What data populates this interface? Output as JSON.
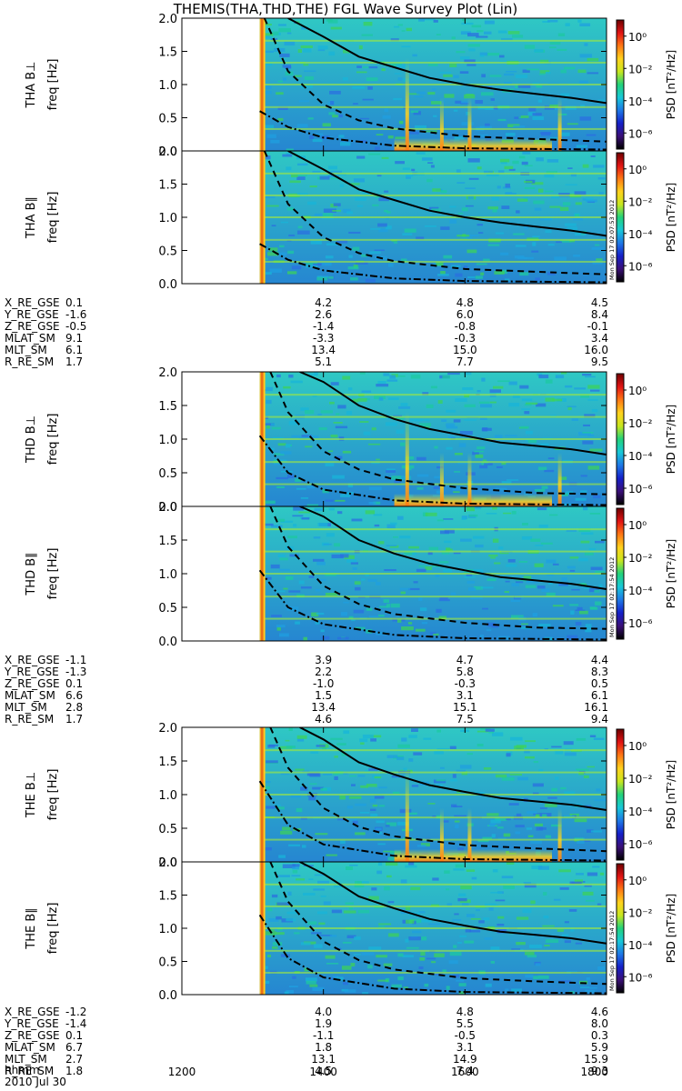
{
  "chart_data": {
    "type": "heatmap",
    "title": "THEMIS(THA,THD,THE) FGL Wave Survey Plot (Lin)",
    "date_label": "2010 Jul 30",
    "time_label": "hhmm",
    "time_ticks": [
      "1200",
      "1400",
      "1600",
      "1800"
    ],
    "time_range_hhmm": [
      "1200",
      "1800"
    ],
    "freq_label": "freq [Hz]",
    "freq_range": [
      0.0,
      2.0
    ],
    "freq_ticks": [
      "0.0",
      "0.5",
      "1.0",
      "1.5",
      "2.0"
    ],
    "colorbar": {
      "label": "PSD [nT²/Hz]",
      "ticks": [
        "10⁰",
        "10⁻²",
        "10⁻⁴",
        "10⁻⁶"
      ],
      "range_log10": [
        -7,
        1
      ],
      "colors": [
        "#000000",
        "#3b1078",
        "#1520c8",
        "#1e78e6",
        "#18c8d8",
        "#22d27a",
        "#c8e61e",
        "#ffd21e",
        "#ff7814",
        "#e11414",
        "#6e0000"
      ]
    },
    "stamp_texts": [
      "Mon Sep 17 02:07:53 2012",
      "Mon Sep 17 02:17:54 2012"
    ],
    "panels": [
      {
        "label": "THA B⊥",
        "probe": "THA",
        "component": "perp",
        "stamp": "",
        "data_start_hhmm": "1306",
        "solid_curve": {
          "x": [
            "1330",
            "1400",
            "1430",
            "1500",
            "1530",
            "1600",
            "1630",
            "1700",
            "1730",
            "1800"
          ],
          "y": [
            2.1,
            1.72,
            1.42,
            1.26,
            1.1,
            1.0,
            0.92,
            0.86,
            0.8,
            0.72
          ]
        },
        "dashed_curve": {
          "x": [
            "1310",
            "1330",
            "1400",
            "1430",
            "1500",
            "1600",
            "1700",
            "1800"
          ],
          "y": [
            2.0,
            1.2,
            0.7,
            0.46,
            0.34,
            0.22,
            0.18,
            0.14
          ]
        },
        "dashdot_curve": {
          "x": [
            "1306",
            "1330",
            "1400",
            "1500",
            "1600",
            "1800"
          ],
          "y": [
            0.6,
            0.36,
            0.2,
            0.08,
            0.04,
            0.02
          ]
        }
      },
      {
        "label": "THA B∥",
        "probe": "THA",
        "component": "par",
        "stamp": "Mon Sep 17 02:07:53 2012",
        "data_start_hhmm": "1306",
        "solid_curve": {
          "x": [
            "1330",
            "1400",
            "1430",
            "1500",
            "1530",
            "1600",
            "1630",
            "1700",
            "1730",
            "1800"
          ],
          "y": [
            2.1,
            1.72,
            1.42,
            1.26,
            1.1,
            1.0,
            0.92,
            0.86,
            0.8,
            0.72
          ]
        },
        "dashed_curve": {
          "x": [
            "1310",
            "1330",
            "1400",
            "1430",
            "1500",
            "1600",
            "1700",
            "1800"
          ],
          "y": [
            2.0,
            1.2,
            0.7,
            0.46,
            0.34,
            0.22,
            0.18,
            0.14
          ]
        },
        "dashdot_curve": {
          "x": [
            "1306",
            "1330",
            "1400",
            "1500",
            "1600",
            "1800"
          ],
          "y": [
            0.6,
            0.36,
            0.2,
            0.08,
            0.04,
            0.02
          ]
        }
      },
      {
        "label": "THD B⊥",
        "probe": "THD",
        "component": "perp",
        "stamp": "",
        "data_start_hhmm": "1306",
        "solid_curve": {
          "x": [
            "1340",
            "1400",
            "1430",
            "1500",
            "1530",
            "1600",
            "1630",
            "1700",
            "1730",
            "1800"
          ],
          "y": [
            2.1,
            1.85,
            1.5,
            1.3,
            1.15,
            1.05,
            0.95,
            0.9,
            0.85,
            0.77
          ]
        },
        "dashed_curve": {
          "x": [
            "1315",
            "1330",
            "1400",
            "1430",
            "1500",
            "1600",
            "1700",
            "1800"
          ],
          "y": [
            2.0,
            1.4,
            0.82,
            0.55,
            0.4,
            0.27,
            0.2,
            0.18
          ]
        },
        "dashdot_curve": {
          "x": [
            "1306",
            "1330",
            "1400",
            "1500",
            "1600",
            "1800"
          ],
          "y": [
            1.05,
            0.5,
            0.25,
            0.09,
            0.04,
            0.02
          ]
        }
      },
      {
        "label": "THD B∥",
        "probe": "THD",
        "component": "par",
        "stamp": "Mon Sep 17 02:17:54 2012",
        "data_start_hhmm": "1306",
        "solid_curve": {
          "x": [
            "1340",
            "1400",
            "1430",
            "1500",
            "1530",
            "1600",
            "1630",
            "1700",
            "1730",
            "1800"
          ],
          "y": [
            2.1,
            1.85,
            1.5,
            1.3,
            1.15,
            1.05,
            0.95,
            0.9,
            0.85,
            0.77
          ]
        },
        "dashed_curve": {
          "x": [
            "1315",
            "1330",
            "1400",
            "1430",
            "1500",
            "1600",
            "1700",
            "1800"
          ],
          "y": [
            2.0,
            1.4,
            0.82,
            0.55,
            0.4,
            0.27,
            0.2,
            0.18
          ]
        },
        "dashdot_curve": {
          "x": [
            "1306",
            "1330",
            "1400",
            "1500",
            "1600",
            "1800"
          ],
          "y": [
            1.05,
            0.5,
            0.25,
            0.09,
            0.04,
            0.02
          ]
        }
      },
      {
        "label": "THE B⊥",
        "probe": "THE",
        "component": "perp",
        "stamp": "",
        "data_start_hhmm": "1306",
        "solid_curve": {
          "x": [
            "1340",
            "1400",
            "1430",
            "1500",
            "1530",
            "1600",
            "1630",
            "1700",
            "1730",
            "1800"
          ],
          "y": [
            2.1,
            1.82,
            1.48,
            1.3,
            1.14,
            1.04,
            0.95,
            0.9,
            0.85,
            0.77
          ]
        },
        "dashed_curve": {
          "x": [
            "1315",
            "1330",
            "1400",
            "1430",
            "1500",
            "1600",
            "1700",
            "1800"
          ],
          "y": [
            2.0,
            1.4,
            0.8,
            0.52,
            0.38,
            0.25,
            0.2,
            0.16
          ]
        },
        "dashdot_curve": {
          "x": [
            "1306",
            "1330",
            "1400",
            "1500",
            "1600",
            "1800"
          ],
          "y": [
            1.2,
            0.55,
            0.26,
            0.09,
            0.04,
            0.02
          ]
        }
      },
      {
        "label": "THE B∥",
        "probe": "THE",
        "component": "par",
        "stamp": "Mon Sep 17 02:17:54 2012",
        "data_start_hhmm": "1306",
        "solid_curve": {
          "x": [
            "1340",
            "1400",
            "1430",
            "1500",
            "1530",
            "1600",
            "1630",
            "1700",
            "1730",
            "1800"
          ],
          "y": [
            2.1,
            1.82,
            1.48,
            1.3,
            1.14,
            1.04,
            0.95,
            0.9,
            0.85,
            0.77
          ]
        },
        "dashed_curve": {
          "x": [
            "1315",
            "1330",
            "1400",
            "1430",
            "1500",
            "1600",
            "1700",
            "1800"
          ],
          "y": [
            2.0,
            1.4,
            0.8,
            0.52,
            0.38,
            0.25,
            0.2,
            0.16
          ]
        },
        "dashdot_curve": {
          "x": [
            "1306",
            "1330",
            "1400",
            "1500",
            "1600",
            "1800"
          ],
          "y": [
            1.2,
            0.55,
            0.26,
            0.09,
            0.04,
            0.02
          ]
        }
      }
    ],
    "ephemeris_tables": [
      {
        "probe": "THA",
        "rows": [
          {
            "label": "X_RE_GSE",
            "values": [
              "0.1",
              "4.2",
              "4.8",
              "4.5"
            ]
          },
          {
            "label": "Y_RE_GSE",
            "values": [
              "-1.6",
              "2.6",
              "6.0",
              "8.4"
            ]
          },
          {
            "label": "Z_RE_GSE",
            "values": [
              "-0.5",
              "-1.4",
              "-0.8",
              "-0.1"
            ]
          },
          {
            "label": "MLAT_SM",
            "values": [
              "9.1",
              "-3.3",
              "-0.3",
              "3.4"
            ]
          },
          {
            "label": "MLT_SM",
            "values": [
              "6.1",
              "13.4",
              "15.0",
              "16.0"
            ]
          },
          {
            "label": "R_RE_SM",
            "values": [
              "1.7",
              "5.1",
              "7.7",
              "9.5"
            ]
          }
        ]
      },
      {
        "probe": "THD",
        "rows": [
          {
            "label": "X_RE_GSE",
            "values": [
              "-1.1",
              "3.9",
              "4.7",
              "4.4"
            ]
          },
          {
            "label": "Y_RE_GSE",
            "values": [
              "-1.3",
              "2.2",
              "5.8",
              "8.3"
            ]
          },
          {
            "label": "Z_RE_GSE",
            "values": [
              "0.1",
              "-1.0",
              "-0.3",
              "0.5"
            ]
          },
          {
            "label": "MLAT_SM",
            "values": [
              "6.6",
              "1.5",
              "3.1",
              "6.1"
            ]
          },
          {
            "label": "MLT_SM",
            "values": [
              "2.8",
              "13.4",
              "15.1",
              "16.1"
            ]
          },
          {
            "label": "R_RE_SM",
            "values": [
              "1.7",
              "4.6",
              "7.5",
              "9.4"
            ]
          }
        ]
      },
      {
        "probe": "THE",
        "rows": [
          {
            "label": "X_RE_GSE",
            "values": [
              "-1.2",
              "4.0",
              "4.8",
              "4.6"
            ]
          },
          {
            "label": "Y_RE_GSE",
            "values": [
              "-1.4",
              "1.9",
              "5.5",
              "8.0"
            ]
          },
          {
            "label": "Z_RE_GSE",
            "values": [
              "0.1",
              "-1.1",
              "-0.5",
              "0.3"
            ]
          },
          {
            "label": "MLAT_SM",
            "values": [
              "6.7",
              "1.8",
              "3.1",
              "5.9"
            ]
          },
          {
            "label": "MLT_SM",
            "values": [
              "2.7",
              "13.1",
              "14.9",
              "15.9"
            ]
          },
          {
            "label": "R_RE_SM",
            "values": [
              "1.8",
              "4.5",
              "7.4",
              "9.3"
            ]
          }
        ]
      }
    ]
  }
}
